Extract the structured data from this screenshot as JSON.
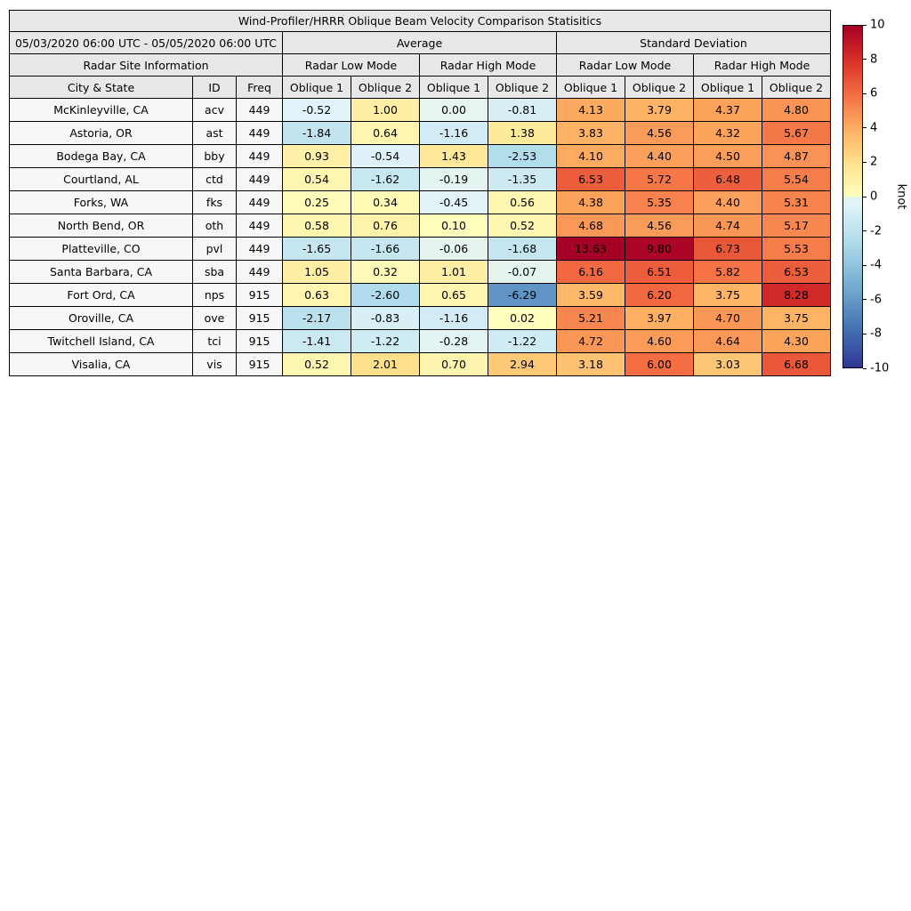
{
  "title": "Wind-Profiler/HRRR Oblique Beam Velocity Comparison Statisitics",
  "date_range": "05/03/2020 06:00 UTC - 05/05/2020 06:00 UTC",
  "site_info_header": "Radar Site Information",
  "group_headers": {
    "average": "Average",
    "standard_deviation": "Standard Deviation"
  },
  "mode_headers": [
    "Radar Low Mode",
    "Radar High Mode",
    "Radar Low Mode",
    "Radar High Mode"
  ],
  "column_headers": [
    "City & State",
    "ID",
    "Freq",
    "Oblique 1",
    "Oblique 2",
    "Oblique 1",
    "Oblique 2",
    "Oblique 1",
    "Oblique 2",
    "Oblique 1",
    "Oblique 2"
  ],
  "colorbar": {
    "label": "knot",
    "ticks": [
      "10",
      "8",
      "6",
      "4",
      "2",
      "0",
      "-2",
      "-4",
      "-6",
      "-8",
      "-10"
    ],
    "vmin": -10,
    "vmax": 10,
    "colormap": "RdYlBu_r"
  },
  "chart_data": {
    "type": "heatmap",
    "value_unit": "knot",
    "value_range": [
      -10,
      10
    ],
    "column_groups": [
      "Average / Radar Low Mode",
      "Average / Radar High Mode",
      "Standard Deviation / Radar Low Mode",
      "Standard Deviation / Radar High Mode"
    ],
    "rows": [
      {
        "city": "McKinleyville, CA",
        "id": "acv",
        "freq": "449",
        "avg_low": [
          "-0.52",
          "1.00"
        ],
        "avg_high": [
          "0.00",
          "-0.81"
        ],
        "std_low": [
          "4.13",
          "3.79"
        ],
        "std_high": [
          "4.37",
          "4.80"
        ]
      },
      {
        "city": "Astoria, OR",
        "id": "ast",
        "freq": "449",
        "avg_low": [
          "-1.84",
          "0.64"
        ],
        "avg_high": [
          "-1.16",
          "1.38"
        ],
        "std_low": [
          "3.83",
          "4.56"
        ],
        "std_high": [
          "4.32",
          "5.67"
        ]
      },
      {
        "city": "Bodega Bay, CA",
        "id": "bby",
        "freq": "449",
        "avg_low": [
          "0.93",
          "-0.54"
        ],
        "avg_high": [
          "1.43",
          "-2.53"
        ],
        "std_low": [
          "4.10",
          "4.40"
        ],
        "std_high": [
          "4.50",
          "4.87"
        ]
      },
      {
        "city": "Courtland, AL",
        "id": "ctd",
        "freq": "449",
        "avg_low": [
          "0.54",
          "-1.62"
        ],
        "avg_high": [
          "-0.19",
          "-1.35"
        ],
        "std_low": [
          "6.53",
          "5.72"
        ],
        "std_high": [
          "6.48",
          "5.54"
        ]
      },
      {
        "city": "Forks, WA",
        "id": "fks",
        "freq": "449",
        "avg_low": [
          "0.25",
          "0.34"
        ],
        "avg_high": [
          "-0.45",
          "0.56"
        ],
        "std_low": [
          "4.38",
          "5.35"
        ],
        "std_high": [
          "4.40",
          "5.31"
        ]
      },
      {
        "city": "North Bend, OR",
        "id": "oth",
        "freq": "449",
        "avg_low": [
          "0.58",
          "0.76"
        ],
        "avg_high": [
          "0.10",
          "0.52"
        ],
        "std_low": [
          "4.68",
          "4.56"
        ],
        "std_high": [
          "4.74",
          "5.17"
        ]
      },
      {
        "city": "Platteville, CO",
        "id": "pvl",
        "freq": "449",
        "avg_low": [
          "-1.65",
          "-1.66"
        ],
        "avg_high": [
          "-0.06",
          "-1.68"
        ],
        "std_low": [
          "13.63",
          "9.80"
        ],
        "std_high": [
          "6.73",
          "5.53"
        ]
      },
      {
        "city": "Santa Barbara, CA",
        "id": "sba",
        "freq": "449",
        "avg_low": [
          "1.05",
          "0.32"
        ],
        "avg_high": [
          "1.01",
          "-0.07"
        ],
        "std_low": [
          "6.16",
          "6.51"
        ],
        "std_high": [
          "5.82",
          "6.53"
        ]
      },
      {
        "city": "Fort Ord, CA",
        "id": "nps",
        "freq": "915",
        "avg_low": [
          "0.63",
          "-2.60"
        ],
        "avg_high": [
          "0.65",
          "-6.29"
        ],
        "std_low": [
          "3.59",
          "6.20"
        ],
        "std_high": [
          "3.75",
          "8.28"
        ]
      },
      {
        "city": "Oroville, CA",
        "id": "ove",
        "freq": "915",
        "avg_low": [
          "-2.17",
          "-0.83"
        ],
        "avg_high": [
          "-1.16",
          "0.02"
        ],
        "std_low": [
          "5.21",
          "3.97"
        ],
        "std_high": [
          "4.70",
          "3.75"
        ]
      },
      {
        "city": "Twitchell Island, CA",
        "id": "tci",
        "freq": "915",
        "avg_low": [
          "-1.41",
          "-1.22"
        ],
        "avg_high": [
          "-0.28",
          "-1.22"
        ],
        "std_low": [
          "4.72",
          "4.60"
        ],
        "std_high": [
          "4.64",
          "4.30"
        ]
      },
      {
        "city": "Visalia, CA",
        "id": "vis",
        "freq": "915",
        "avg_low": [
          "0.52",
          "2.01"
        ],
        "avg_high": [
          "0.70",
          "2.94"
        ],
        "std_low": [
          "3.18",
          "6.00"
        ],
        "std_high": [
          "3.03",
          "6.68"
        ]
      }
    ]
  }
}
